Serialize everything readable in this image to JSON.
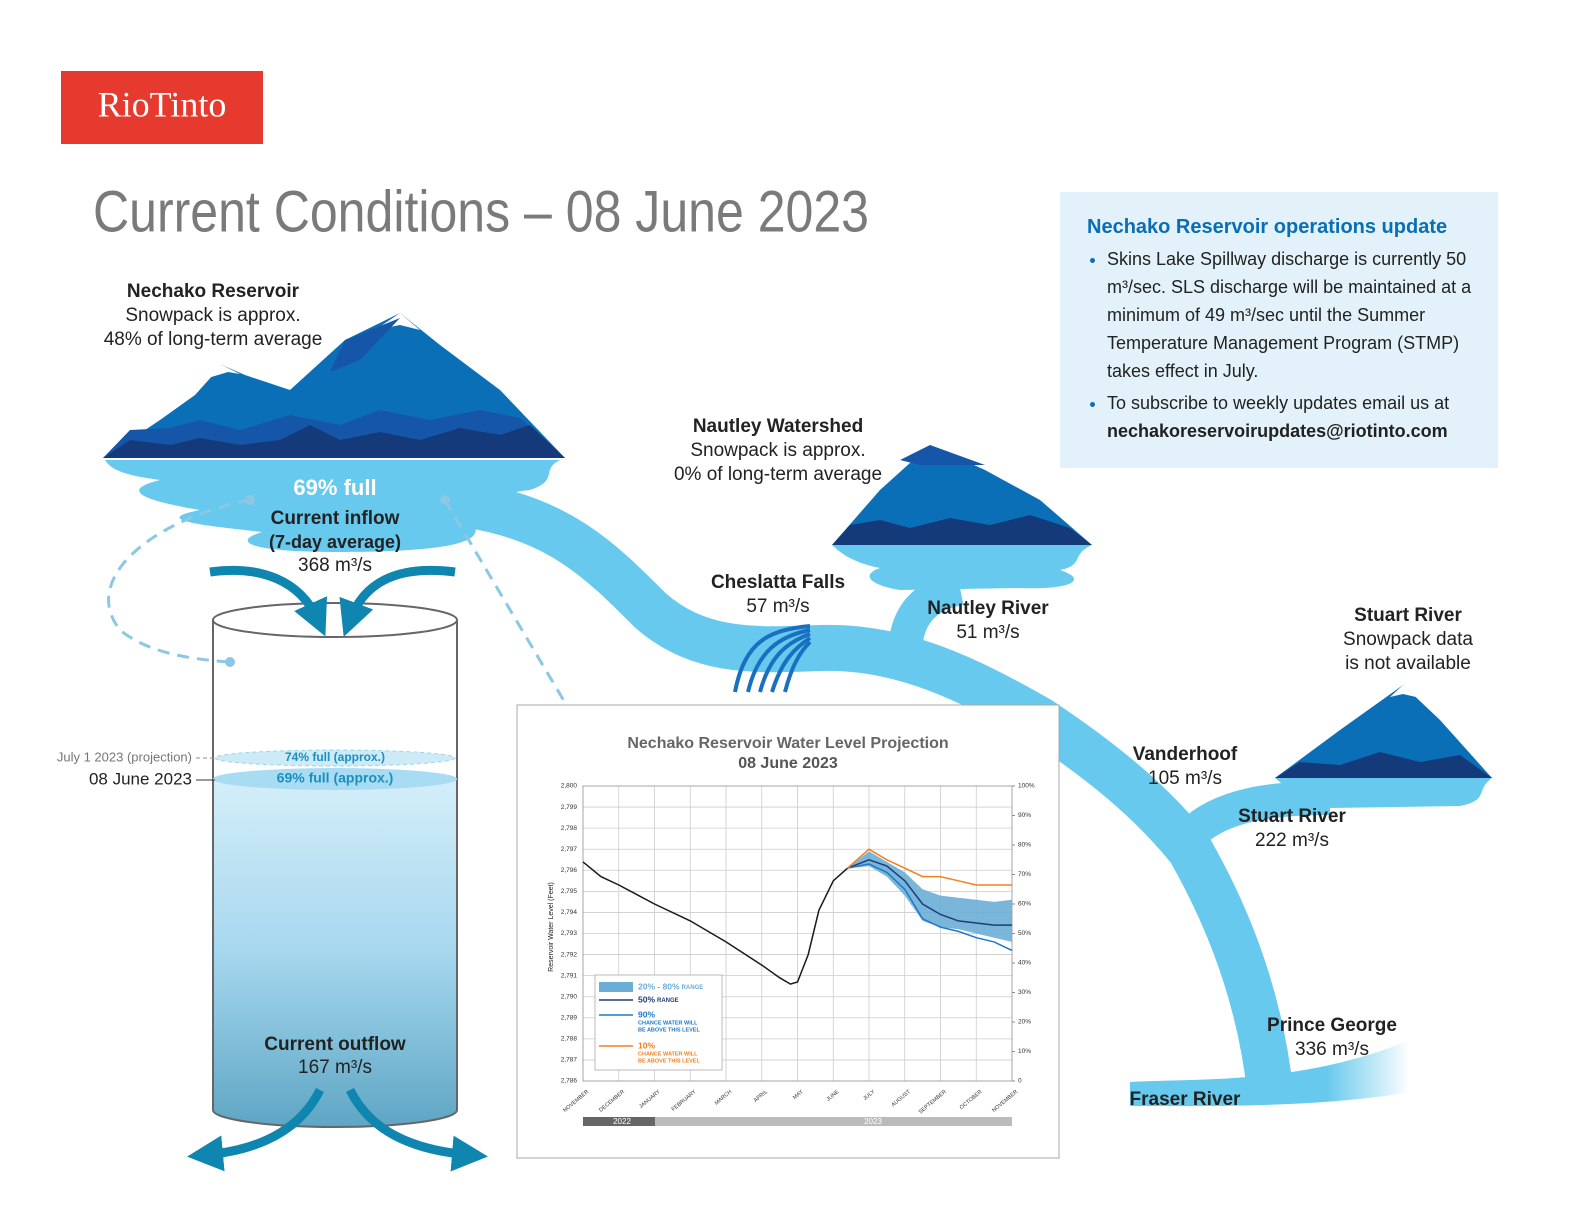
{
  "logo": "RioTinto",
  "title": "Current Conditions – 08 June 2023",
  "nechako_reservoir": {
    "name": "Nechako Reservoir",
    "lines": [
      "Snowpack is approx.",
      "48% of long-term average"
    ],
    "fill": "69% full",
    "inflow_label": "Current inflow",
    "inflow_period": "(7-day average)",
    "inflow_value": "368 m³/s"
  },
  "reservoir_level": {
    "projection_label": "July 1 2023 (projection)",
    "projection_fill": "74% full (approx.)",
    "current_label": "08 June 2023",
    "current_fill": "69% full (approx.)",
    "outflow_label": "Current outflow",
    "outflow_value": "167 m³/s"
  },
  "nautley_watershed": {
    "name": "Nautley Watershed",
    "lines": [
      "Snowpack is approx.",
      "0% of long-term average"
    ]
  },
  "stuart_snowpack": {
    "name": "Stuart River",
    "lines": [
      "Snowpack data",
      "is not available"
    ]
  },
  "stations": [
    {
      "name": "Cheslatta Falls",
      "value": "57 m³/s"
    },
    {
      "name": "Nautley River",
      "value": "51 m³/s"
    },
    {
      "name": "Vanderhoof",
      "value": "105 m³/s"
    },
    {
      "name": "Stuart River",
      "value": "222 m³/s"
    },
    {
      "name": "Prince George",
      "value": "336 m³/s"
    }
  ],
  "fraser_river": "Fraser River",
  "update_box": {
    "title": "Nechako Reservoir operations update",
    "bullets": [
      {
        "text": "Skins Lake Spillway discharge is currently 50 m³/sec. SLS discharge will be maintained at a minimum of 49 m³/sec until the Summer Temperature Management Program (STMP) takes effect in July."
      },
      {
        "text": "To subscribe to weekly updates email us at",
        "email": "nechakoreservoirupdates@riotinto.com"
      }
    ]
  },
  "chart_data": {
    "type": "line",
    "title": "Nechako Reservoir Water Level Projection",
    "subtitle": "08 June 2023",
    "ylabel": "Reservoir Water Level (Feet)",
    "xlim": [
      0,
      12
    ],
    "xticks": [
      {
        "value": 0,
        "label": "NOVEMBER"
      },
      {
        "value": 1,
        "label": "DECEMBER"
      },
      {
        "value": 2,
        "label": "JANUARY"
      },
      {
        "value": 3,
        "label": "FEBRUARY"
      },
      {
        "value": 4,
        "label": "MARCH"
      },
      {
        "value": 5,
        "label": "APRIL"
      },
      {
        "value": 6,
        "label": "MAY"
      },
      {
        "value": 7,
        "label": "JUNE"
      },
      {
        "value": 8,
        "label": "JULY"
      },
      {
        "value": 9,
        "label": "AUGUST"
      },
      {
        "value": 10,
        "label": "SEPTEMBER"
      },
      {
        "value": 11,
        "label": "OCTOBER"
      },
      {
        "value": 12,
        "label": "NOVEMBER"
      }
    ],
    "year_labels": [
      "2022",
      "2023"
    ],
    "ylim": [
      2786,
      2800
    ],
    "yticks": [
      {
        "value": 2786,
        "label": "2,786"
      },
      {
        "value": 2787,
        "label": "2,787"
      },
      {
        "value": 2788,
        "label": "2,788"
      },
      {
        "value": 2789,
        "label": "2,789"
      },
      {
        "value": 2790,
        "label": "2,790"
      },
      {
        "value": 2791,
        "label": "2,791"
      },
      {
        "value": 2792,
        "label": "2,792"
      },
      {
        "value": 2793,
        "label": "2,793"
      },
      {
        "value": 2794,
        "label": "2,794"
      },
      {
        "value": 2795,
        "label": "2,795"
      },
      {
        "value": 2796,
        "label": "2,796"
      },
      {
        "value": 2797,
        "label": "2,797"
      },
      {
        "value": 2798,
        "label": "2,798"
      },
      {
        "value": 2799,
        "label": "2,799"
      },
      {
        "value": 2800,
        "label": "2,800"
      }
    ],
    "y2lim": [
      0,
      100
    ],
    "y2ticks": [
      0,
      {
        "value": 10,
        "label": "10%"
      },
      {
        "value": 20,
        "label": "20%"
      },
      {
        "value": 30,
        "label": "30%"
      },
      {
        "value": 40,
        "label": "40%"
      },
      {
        "value": 50,
        "label": "50%"
      },
      {
        "value": 60,
        "label": "60%"
      },
      {
        "value": 70,
        "label": "70%"
      },
      {
        "value": 80,
        "label": "80%"
      },
      {
        "value": 90,
        "label": "90%"
      },
      {
        "value": 100,
        "label": "100%"
      }
    ],
    "grid": true,
    "series": [
      {
        "type": "line",
        "color": "#1a1a1a",
        "x": [
          0,
          0.5,
          1,
          2,
          3,
          4,
          5,
          5.5,
          5.8,
          6,
          6.3,
          6.6,
          7,
          7.4
        ],
        "values": [
          2796.4,
          2795.7,
          2795.3,
          2794.4,
          2793.6,
          2792.6,
          2791.5,
          2790.9,
          2790.6,
          2790.7,
          2792.0,
          2794.1,
          2795.5,
          2796.1
        ]
      },
      {
        "type": "band",
        "name": "20% - 80%",
        "legend_note": [
          "RANGE"
        ],
        "color": "#6aaed6",
        "x": [
          7.4,
          8,
          8.5,
          9,
          9.5,
          10,
          10.5,
          11,
          11.5,
          12
        ],
        "low": [
          2796.1,
          2796.2,
          2795.7,
          2794.8,
          2793.6,
          2793.3,
          2793.2,
          2793.0,
          2792.8,
          2792.6
        ],
        "high": [
          2796.1,
          2796.9,
          2796.4,
          2795.9,
          2795.1,
          2794.8,
          2794.7,
          2794.6,
          2794.5,
          2794.6
        ]
      },
      {
        "type": "line",
        "name": "50%",
        "legend_note": [
          "RANGE"
        ],
        "color": "#1f3d7a",
        "x": [
          7.4,
          8,
          8.5,
          9,
          9.5,
          10,
          10.5,
          11,
          11.5,
          12
        ],
        "values": [
          2796.1,
          2796.5,
          2796.2,
          2795.5,
          2794.4,
          2793.9,
          2793.6,
          2793.5,
          2793.4,
          2793.4
        ]
      },
      {
        "type": "line",
        "name": "90%",
        "legend_note": [
          "CHANCE WATER WILL",
          "BE ABOVE THIS LEVEL"
        ],
        "color": "#1f78c8",
        "x": [
          7.4,
          8,
          8.5,
          9,
          9.5,
          10,
          10.5,
          11,
          11.5,
          12
        ],
        "values": [
          2796.1,
          2796.3,
          2795.9,
          2795.1,
          2793.7,
          2793.3,
          2793.1,
          2792.8,
          2792.6,
          2792.2
        ]
      },
      {
        "type": "line",
        "name": "10%",
        "legend_note": [
          "CHANCE WATER WILL",
          "BE ABOVE THIS LEVEL"
        ],
        "color": "#f08020",
        "x": [
          7.4,
          8,
          8.5,
          9,
          9.5,
          10,
          10.5,
          11,
          11.5,
          12
        ],
        "values": [
          2796.1,
          2797.0,
          2796.5,
          2796.1,
          2795.7,
          2795.7,
          2795.5,
          2795.3,
          2795.3,
          2795.3
        ]
      }
    ]
  }
}
